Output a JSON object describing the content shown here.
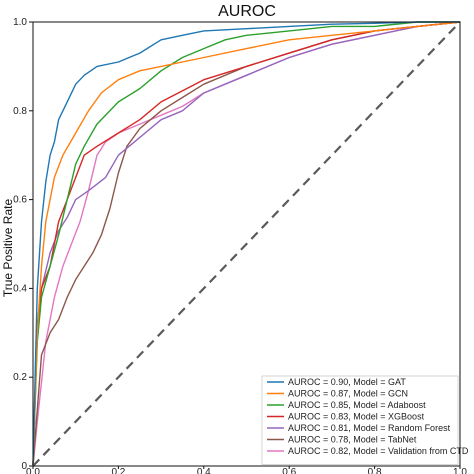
{
  "chart_data": {
    "type": "line",
    "title": "AUROC",
    "xlabel": "",
    "ylabel": "True Positive Rate",
    "xlim": [
      0,
      1
    ],
    "ylim": [
      0,
      1
    ],
    "xticks": [
      "0.0",
      "0.2",
      "0.4",
      "0.6",
      "0.8",
      "1.0"
    ],
    "yticks": [
      "0",
      "0.2",
      "0.4",
      "0.6",
      "0.8",
      "1.0"
    ],
    "grid": false,
    "legend_position": "lower-right",
    "diagonal": {
      "x": [
        0,
        1
      ],
      "y": [
        0,
        1
      ],
      "color": "#5a5a5a",
      "style": "dashed"
    },
    "series": [
      {
        "name": "AUROC = 0.90, Model = GAT",
        "color": "#1f77b4",
        "x": [
          0,
          0.005,
          0.01,
          0.02,
          0.03,
          0.04,
          0.05,
          0.06,
          0.08,
          0.1,
          0.12,
          0.15,
          0.2,
          0.25,
          0.3,
          0.35,
          0.4,
          0.5,
          0.6,
          0.7,
          0.8,
          0.9,
          1.0
        ],
        "y": [
          0,
          0.2,
          0.4,
          0.55,
          0.64,
          0.7,
          0.73,
          0.78,
          0.82,
          0.86,
          0.88,
          0.9,
          0.91,
          0.93,
          0.96,
          0.97,
          0.98,
          0.985,
          0.99,
          0.995,
          0.997,
          1.0,
          1.0
        ]
      },
      {
        "name": "AUROC = 0.87, Model = GCN",
        "color": "#ff7f0e",
        "x": [
          0,
          0.01,
          0.02,
          0.03,
          0.05,
          0.07,
          0.1,
          0.13,
          0.16,
          0.2,
          0.25,
          0.3,
          0.4,
          0.5,
          0.6,
          0.7,
          0.8,
          0.9,
          1.0
        ],
        "y": [
          0,
          0.3,
          0.45,
          0.55,
          0.65,
          0.7,
          0.75,
          0.8,
          0.84,
          0.87,
          0.89,
          0.9,
          0.92,
          0.94,
          0.96,
          0.97,
          0.98,
          0.99,
          1.0
        ]
      },
      {
        "name": "AUROC = 0.85, Model = Adaboost",
        "color": "#2ca02c",
        "x": [
          0,
          0.01,
          0.02,
          0.04,
          0.06,
          0.08,
          0.1,
          0.12,
          0.15,
          0.2,
          0.25,
          0.3,
          0.35,
          0.4,
          0.45,
          0.5,
          0.6,
          0.7,
          0.8,
          0.9,
          1.0
        ],
        "y": [
          0,
          0.28,
          0.38,
          0.45,
          0.52,
          0.6,
          0.68,
          0.72,
          0.77,
          0.82,
          0.85,
          0.89,
          0.92,
          0.94,
          0.96,
          0.97,
          0.98,
          0.99,
          0.99,
          1.0,
          1.0
        ]
      },
      {
        "name": "AUROC = 0.83, Model = XGBoost",
        "color": "#d62728",
        "x": [
          0,
          0.01,
          0.02,
          0.04,
          0.06,
          0.08,
          0.1,
          0.12,
          0.15,
          0.2,
          0.25,
          0.3,
          0.4,
          0.5,
          0.6,
          0.7,
          0.8,
          0.9,
          1.0
        ],
        "y": [
          0,
          0.32,
          0.4,
          0.45,
          0.55,
          0.6,
          0.65,
          0.7,
          0.72,
          0.75,
          0.78,
          0.82,
          0.87,
          0.9,
          0.93,
          0.96,
          0.98,
          0.99,
          1.0
        ]
      },
      {
        "name": "AUROC = 0.81, Model = Random Forest",
        "color": "#9467bd",
        "x": [
          0,
          0.01,
          0.02,
          0.04,
          0.06,
          0.08,
          0.1,
          0.13,
          0.17,
          0.2,
          0.25,
          0.3,
          0.35,
          0.4,
          0.5,
          0.6,
          0.7,
          0.8,
          0.9,
          1.0
        ],
        "y": [
          0,
          0.3,
          0.4,
          0.48,
          0.53,
          0.56,
          0.6,
          0.62,
          0.65,
          0.7,
          0.74,
          0.78,
          0.8,
          0.84,
          0.88,
          0.92,
          0.95,
          0.97,
          0.99,
          1.0
        ]
      },
      {
        "name": "AUROC = 0.78, Model = TabNet",
        "color": "#8c564b",
        "x": [
          0,
          0.02,
          0.04,
          0.06,
          0.08,
          0.1,
          0.12,
          0.14,
          0.16,
          0.18,
          0.2,
          0.22,
          0.25,
          0.3,
          0.35,
          0.4,
          0.5,
          0.6,
          0.7,
          0.8,
          0.9,
          1.0
        ],
        "y": [
          0,
          0.25,
          0.3,
          0.33,
          0.38,
          0.42,
          0.45,
          0.48,
          0.52,
          0.58,
          0.66,
          0.72,
          0.76,
          0.8,
          0.83,
          0.86,
          0.9,
          0.93,
          0.96,
          0.98,
          0.99,
          1.0
        ]
      },
      {
        "name": "AUROC = 0.82, Model = Validation from CTD",
        "color": "#e377c2",
        "x": [
          0,
          0.01,
          0.03,
          0.05,
          0.07,
          0.09,
          0.11,
          0.13,
          0.15,
          0.17,
          0.2,
          0.25,
          0.3,
          0.35,
          0.4,
          0.5,
          0.6,
          0.7,
          0.8,
          0.9,
          1.0
        ],
        "y": [
          0,
          0.1,
          0.28,
          0.38,
          0.45,
          0.5,
          0.55,
          0.62,
          0.7,
          0.73,
          0.75,
          0.77,
          0.79,
          0.81,
          0.84,
          0.88,
          0.92,
          0.95,
          0.97,
          0.99,
          1.0
        ]
      }
    ]
  }
}
